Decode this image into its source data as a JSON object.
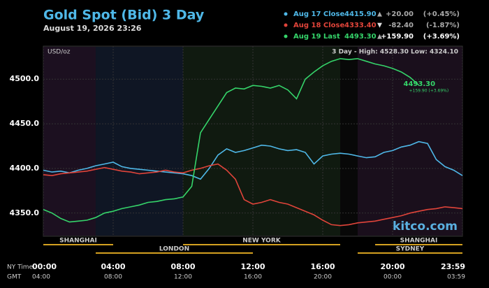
{
  "chart_data": {
    "type": "line",
    "title": "Gold Spot (Bid) 3 Day",
    "subtitle": "August 19, 2026 23:26",
    "unit_label": "USD/oz",
    "range_label": "3 Day - High: 4528.30  Low: 4324.10",
    "watermark": "kitco.com",
    "x": [
      0,
      0.5,
      1,
      1.5,
      2,
      2.5,
      3,
      3.5,
      4,
      4.5,
      5,
      5.5,
      6,
      6.5,
      7,
      7.5,
      8,
      8.5,
      9,
      9.5,
      10,
      10.5,
      11,
      11.5,
      12,
      12.5,
      13,
      13.5,
      14,
      14.5,
      15,
      15.5,
      16,
      16.5,
      17,
      17.5,
      18,
      18.5,
      19,
      19.5,
      20,
      20.5,
      21,
      21.5,
      22,
      22.5,
      23,
      23.5,
      24
    ],
    "series": [
      {
        "name": "Aug 17 Close",
        "color": "#4fb8e8",
        "close_label": "4415.90",
        "arrow": "▲",
        "change": "+20.00",
        "change_pct": "(+0.45%)",
        "values": [
          4398,
          4396,
          4397,
          4395,
          4398,
          4400,
          4403,
          4405,
          4407,
          4402,
          4400,
          4399,
          4398,
          4397,
          4396,
          4395,
          4394,
          4392,
          4388,
          4400,
          4415,
          4422,
          4418,
          4420,
          4423,
          4426,
          4425,
          4422,
          4420,
          4421,
          4418,
          4405,
          4414,
          4416,
          4417,
          4416,
          4414,
          4412,
          4413,
          4418,
          4420,
          4424,
          4426,
          4430,
          4428,
          4410,
          4402,
          4398,
          4392
        ]
      },
      {
        "name": "Aug 18 Close",
        "color": "#e0443a",
        "close_label": "4333.40",
        "arrow": "▼",
        "change": "-82.40",
        "change_pct": "(-1.87%)",
        "values": [
          4393,
          4392,
          4394,
          4395,
          4396,
          4397,
          4399,
          4401,
          4399,
          4397,
          4396,
          4394,
          4395,
          4396,
          4398,
          4396,
          4395,
          4398,
          4400,
          4403,
          4405,
          4398,
          4388,
          4365,
          4360,
          4362,
          4365,
          4362,
          4360,
          4356,
          4352,
          4348,
          4342,
          4337,
          4336,
          4337,
          4339,
          4340,
          4341,
          4343,
          4345,
          4347,
          4350,
          4352,
          4354,
          4355,
          4357,
          4356,
          4355
        ]
      },
      {
        "name": "Aug 19 Last",
        "color": "#35d46a",
        "close_label": "4493.30",
        "arrow": "▲",
        "change": "+159.90",
        "change_pct": "(+3.69%)",
        "values": [
          4354,
          4350,
          4344,
          4340,
          4341,
          4342,
          4345,
          4350,
          4352,
          4355,
          4357,
          4359,
          4362,
          4363,
          4365,
          4366,
          4368,
          4380,
          4440,
          4455,
          4470,
          4485,
          4490,
          4489,
          4493,
          4492,
          4490,
          4493,
          4488,
          4478,
          4500,
          4508,
          4515,
          4520,
          4523,
          4522,
          4523,
          4520,
          4517,
          4515,
          4512,
          4508,
          4502,
          4493.3,
          null,
          null,
          null,
          null,
          null
        ]
      }
    ],
    "last_annotation": {
      "price": "4493.30",
      "change": "+159.90 (+3.69%)"
    },
    "xlim": [
      0,
      24
    ],
    "xticks": [
      {
        "value": 0,
        "label": "00:00"
      },
      {
        "value": 4,
        "label": "04:00"
      },
      {
        "value": 8,
        "label": "08:00"
      },
      {
        "value": 12,
        "label": "12:00"
      },
      {
        "value": 16,
        "label": "16:00"
      },
      {
        "value": 20,
        "label": "20:00"
      },
      {
        "value": 24,
        "label": "23:59"
      }
    ],
    "gmt_labels": [
      "04:00",
      "08:00",
      "12:00",
      "16:00",
      "20:00",
      "00:00",
      "03:59"
    ],
    "x_row_labels": [
      "NY Time",
      "GMT"
    ],
    "ylim": [
      4324,
      4537
    ],
    "yticks": [
      {
        "value": 4350,
        "label": "4350.0"
      },
      {
        "value": 4400,
        "label": "4400.0"
      },
      {
        "value": 4450,
        "label": "4450.0"
      },
      {
        "value": 4500,
        "label": "4500.0"
      }
    ],
    "sessions": [
      "SHANGHAI",
      "LONDON",
      "NEW YORK",
      "SHANGHAI",
      "SYDNEY"
    ],
    "grid": true
  }
}
